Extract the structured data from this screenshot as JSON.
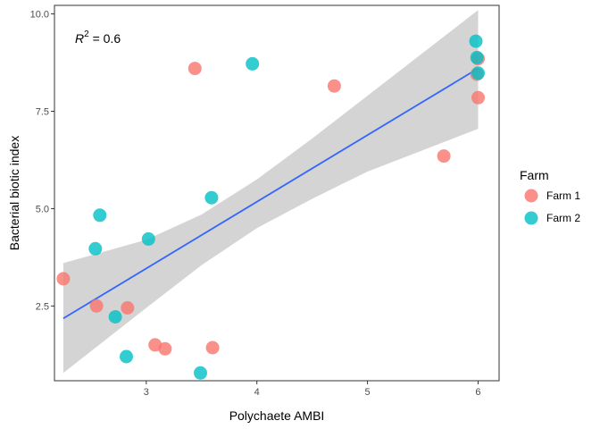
{
  "chart_data": {
    "type": "scatter",
    "xlabel": "Polychaete AMBI",
    "ylabel": "Bacterial biotic index",
    "xlim": [
      2.17,
      6.19
    ],
    "ylim": [
      0.58,
      10.22
    ],
    "x_ticks": [
      3,
      4,
      5,
      6
    ],
    "y_ticks": [
      2.5,
      5.0,
      7.5,
      10.0
    ],
    "x_tick_labels": [
      "3",
      "4",
      "5",
      "6"
    ],
    "y_tick_labels": [
      "2.5",
      "5.0",
      "7.5",
      "10.0"
    ],
    "grid": false,
    "legend": {
      "title": "Farm",
      "placement": "right"
    },
    "annotation": {
      "symbol": "R",
      "superscript": "2",
      "text": " = 0.6"
    },
    "series": [
      {
        "name": "Farm 1",
        "color": "#F8766D",
        "points": [
          {
            "x": 2.25,
            "y": 3.2
          },
          {
            "x": 2.55,
            "y": 2.5
          },
          {
            "x": 2.83,
            "y": 2.45
          },
          {
            "x": 3.08,
            "y": 1.5
          },
          {
            "x": 3.17,
            "y": 1.4
          },
          {
            "x": 3.44,
            "y": 8.6
          },
          {
            "x": 3.6,
            "y": 1.43
          },
          {
            "x": 4.7,
            "y": 8.15
          },
          {
            "x": 5.69,
            "y": 6.35
          },
          {
            "x": 5.99,
            "y": 8.45
          },
          {
            "x": 6.0,
            "y": 8.85
          },
          {
            "x": 6.0,
            "y": 7.85
          }
        ]
      },
      {
        "name": "Farm 2",
        "color": "#00BFC4",
        "points": [
          {
            "x": 2.54,
            "y": 3.97
          },
          {
            "x": 2.58,
            "y": 4.83
          },
          {
            "x": 2.72,
            "y": 2.22
          },
          {
            "x": 2.82,
            "y": 1.2
          },
          {
            "x": 3.02,
            "y": 4.22
          },
          {
            "x": 3.49,
            "y": 0.78
          },
          {
            "x": 3.59,
            "y": 5.28
          },
          {
            "x": 3.96,
            "y": 8.72
          },
          {
            "x": 5.98,
            "y": 9.3
          },
          {
            "x": 5.99,
            "y": 8.88
          },
          {
            "x": 6.0,
            "y": 8.48
          }
        ]
      }
    ],
    "fit": {
      "color": "#3366FF",
      "ci_color": "#cccccc",
      "line": [
        {
          "x": 2.25,
          "y": 2.18
        },
        {
          "x": 6.0,
          "y": 8.6
        }
      ],
      "ci_upper": [
        {
          "x": 2.25,
          "y": 3.6
        },
        {
          "x": 3.0,
          "y": 4.2
        },
        {
          "x": 3.5,
          "y": 4.85
        },
        {
          "x": 4.0,
          "y": 5.75
        },
        {
          "x": 4.5,
          "y": 6.8
        },
        {
          "x": 5.0,
          "y": 7.9
        },
        {
          "x": 5.5,
          "y": 9.0
        },
        {
          "x": 6.0,
          "y": 10.1
        }
      ],
      "ci_lower": [
        {
          "x": 2.25,
          "y": 0.78
        },
        {
          "x": 3.0,
          "y": 2.45
        },
        {
          "x": 3.5,
          "y": 3.55
        },
        {
          "x": 4.0,
          "y": 4.5
        },
        {
          "x": 4.5,
          "y": 5.25
        },
        {
          "x": 5.0,
          "y": 5.95
        },
        {
          "x": 5.5,
          "y": 6.5
        },
        {
          "x": 6.0,
          "y": 7.05
        }
      ]
    }
  }
}
